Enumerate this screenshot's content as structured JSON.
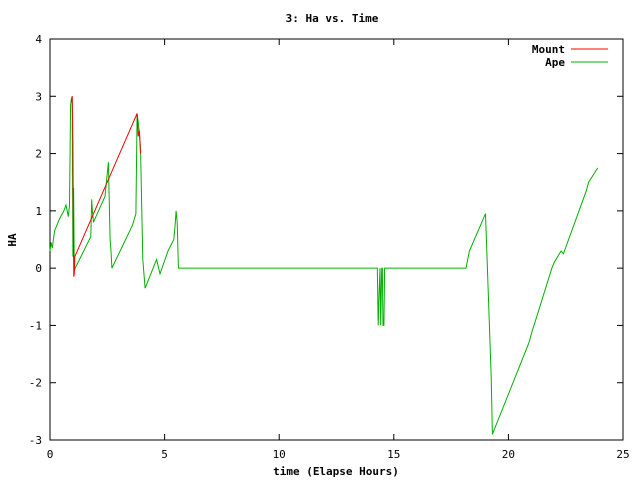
{
  "chart_data": {
    "type": "line",
    "title": "3: Ha vs. Time",
    "xlabel": "time (Elapse Hours)",
    "ylabel": "HA",
    "xlim": [
      0,
      25
    ],
    "ylim": [
      -3,
      4
    ],
    "xticks": [
      0,
      5,
      10,
      15,
      20,
      25
    ],
    "yticks": [
      -3,
      -2,
      -1,
      0,
      1,
      2,
      3,
      4
    ],
    "grid": false,
    "legend_position": "top-right",
    "series": [
      {
        "name": "Mount",
        "color": "#ff0000",
        "x": [
          0.93,
          0.97,
          1.0,
          1.02,
          1.04,
          1.06,
          1.08,
          3.8,
          3.85,
          3.9,
          3.95
        ],
        "y": [
          2.9,
          3.0,
          2.2,
          0.6,
          -0.15,
          -0.1,
          0.2,
          2.7,
          2.3,
          2.4,
          2.0
        ]
      },
      {
        "name": "Ape",
        "color": "#00b000",
        "x": [
          0.0,
          0.05,
          0.1,
          0.15,
          0.2,
          0.3,
          0.4,
          0.6,
          0.7,
          0.8,
          0.85,
          0.9,
          0.93,
          0.97,
          1.0,
          1.03,
          1.06,
          1.1,
          1.78,
          1.82,
          1.85,
          1.9,
          1.95,
          2.4,
          2.55,
          2.62,
          2.66,
          2.7,
          3.6,
          3.75,
          3.8,
          3.85,
          3.9,
          3.95,
          4.05,
          4.15,
          4.6,
          4.65,
          4.8,
          5.15,
          5.4,
          5.45,
          5.5,
          5.55,
          5.6,
          14.2,
          14.28,
          14.32,
          14.36,
          14.4,
          14.43,
          14.47,
          14.5,
          14.53,
          14.57,
          14.6,
          14.63,
          14.67,
          18.15,
          18.3,
          19.0,
          19.25,
          19.3,
          19.35,
          19.45,
          20.9,
          21.0,
          21.9,
          22.0,
          22.3,
          22.4,
          23.4,
          23.5,
          23.9
        ],
        "y": [
          0.3,
          0.45,
          0.35,
          0.5,
          0.65,
          0.75,
          0.85,
          1.0,
          1.1,
          0.9,
          1.1,
          2.85,
          2.95,
          3.0,
          0.2,
          1.4,
          -0.05,
          0.0,
          0.55,
          1.2,
          1.0,
          0.8,
          0.85,
          1.25,
          1.85,
          0.5,
          0.3,
          0.0,
          0.75,
          0.95,
          2.7,
          2.55,
          2.35,
          2.1,
          0.15,
          -0.35,
          0.1,
          0.15,
          -0.1,
          0.3,
          0.5,
          0.7,
          1.0,
          0.8,
          0.0,
          0.0,
          0.0,
          -1.0,
          -0.45,
          0.0,
          -1.0,
          0.0,
          0.0,
          -1.0,
          -1.0,
          0.0,
          0.0,
          0.0,
          0.0,
          0.3,
          0.95,
          -1.9,
          -2.9,
          -2.85,
          -2.75,
          -1.3,
          -1.15,
          0.0,
          0.1,
          0.3,
          0.25,
          1.35,
          1.5,
          1.75
        ]
      }
    ]
  }
}
